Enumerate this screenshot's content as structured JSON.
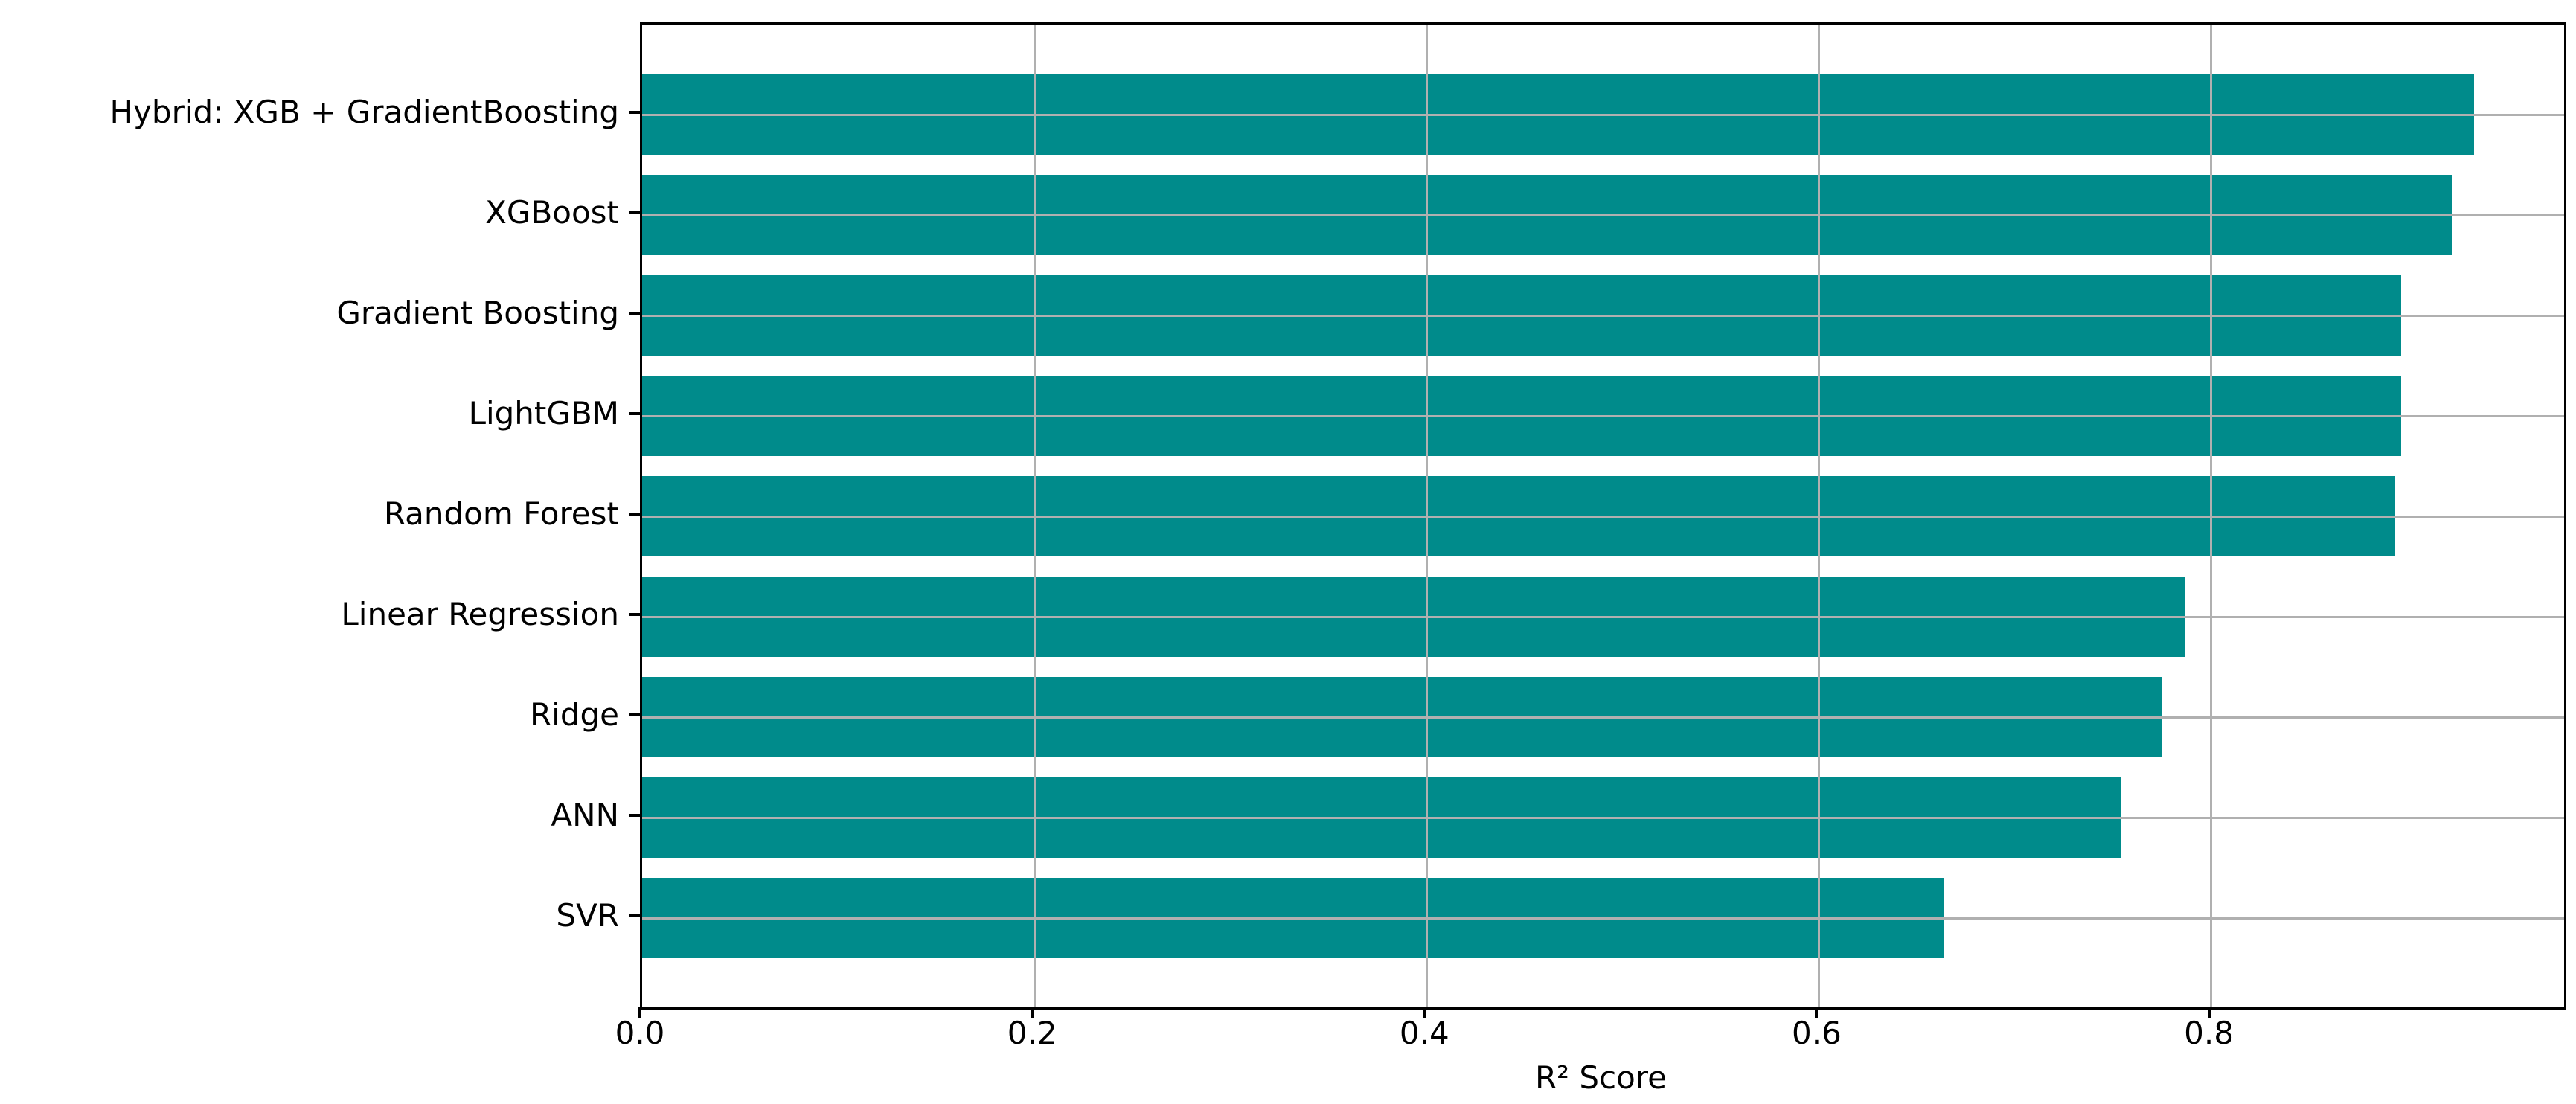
{
  "figure": {
    "background": "#ffffff"
  },
  "chart_data": {
    "type": "bar",
    "orientation": "horizontal",
    "title": "",
    "categories": [
      "Hybrid: XGB + GradientBoosting",
      "XGBoost",
      "Gradient Boosting",
      "LightGBM",
      "Random Forest",
      "Linear Regression",
      "Ridge",
      "ANN",
      "SVR"
    ],
    "values": [
      0.934,
      0.923,
      0.897,
      0.897,
      0.894,
      0.787,
      0.775,
      0.754,
      0.664
    ],
    "series_name": "R² Score",
    "xlabel": "R² Score",
    "ylabel": "",
    "xtick_labels": [
      "0.0",
      "0.2",
      "0.4",
      "0.6",
      "0.8"
    ],
    "xtick_values": [
      0.0,
      0.2,
      0.4,
      0.6,
      0.8
    ],
    "xlim": [
      0,
      0.98
    ],
    "grid": true,
    "legend": false,
    "bar_color": "#008B8B",
    "grid_color": "#b0b0b0",
    "spine_color": "#000000",
    "text_color": "#000000"
  }
}
